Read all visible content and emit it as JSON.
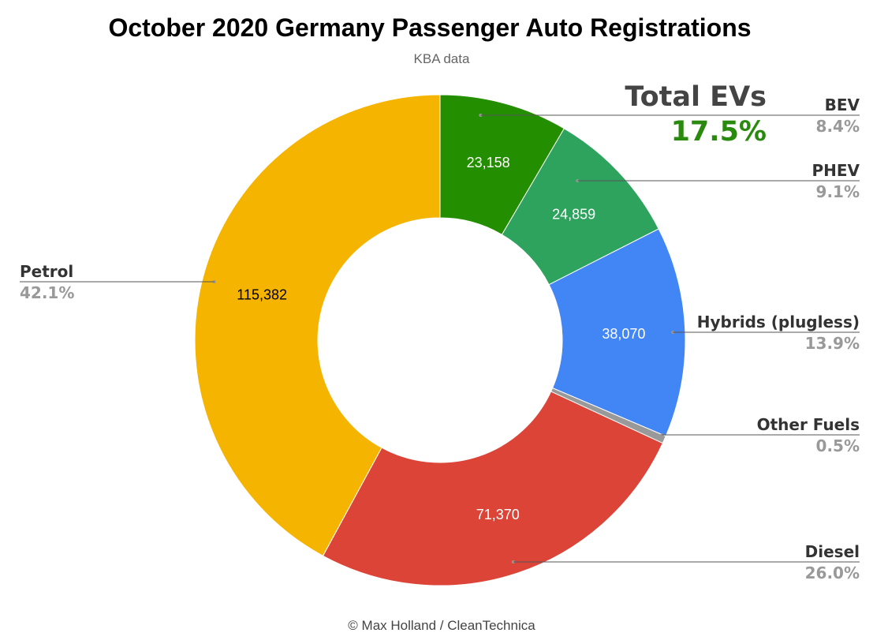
{
  "chart_data": {
    "type": "pie",
    "variant": "donut",
    "title": "October 2020 Germany Passenger Auto Registrations",
    "subtitle": "KBA data",
    "footer": "© Max Holland / CleanTechnica",
    "slices": [
      {
        "key": "bev",
        "label": "BEV",
        "value": 23158,
        "value_label": "23,158",
        "percent_label": "8.4%",
        "color": "#238f00",
        "value_color": "#ffffff"
      },
      {
        "key": "phev",
        "label": "PHEV",
        "value": 24859,
        "value_label": "24,859",
        "percent_label": "9.1%",
        "color": "#2ea35e",
        "value_color": "#ffffff"
      },
      {
        "key": "hybrids",
        "label": "Hybrids (plugless)",
        "value": 38070,
        "value_label": "38,070",
        "percent_label": "13.9%",
        "color": "#4285f4",
        "value_color": "#ffffff"
      },
      {
        "key": "other",
        "label": "Other Fuels",
        "value": 1370,
        "value_label": "",
        "percent_label": "0.5%",
        "color": "#999999",
        "value_color": "#ffffff"
      },
      {
        "key": "diesel",
        "label": "Diesel",
        "value": 71370,
        "value_label": "71,370",
        "percent_label": "26.0%",
        "color": "#db4437",
        "value_color": "#ffffff"
      },
      {
        "key": "petrol",
        "label": "Petrol",
        "value": 115382,
        "value_label": "115,382",
        "percent_label": "42.1%",
        "color": "#f4b400",
        "value_color": "#000000"
      }
    ],
    "annotation": {
      "heading": "Total EVs",
      "value": "17.5%",
      "color": "#2a8a0e"
    }
  }
}
